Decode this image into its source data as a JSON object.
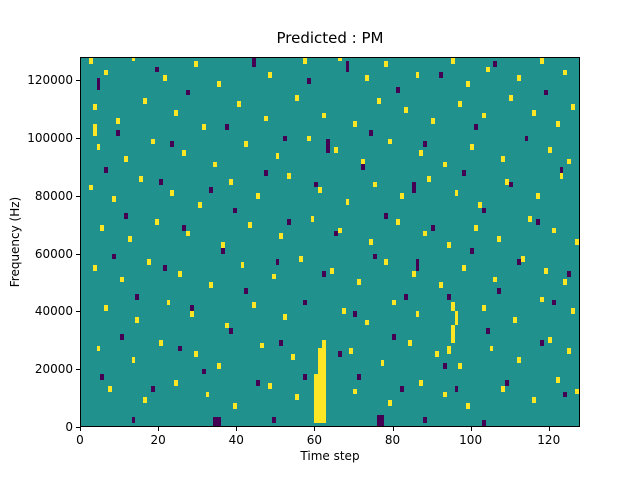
{
  "figure": {
    "title": "Predicted : PM",
    "xlabel": "Time step",
    "ylabel": "Frequency (Hz)"
  },
  "chart_data": {
    "type": "heatmap",
    "title": "Predicted : PM",
    "xlabel": "Time step",
    "ylabel": "Frequency (Hz)",
    "xlim": [
      0,
      128
    ],
    "ylim": [
      0,
      128000
    ],
    "x_ticks": [
      0,
      20,
      40,
      60,
      80,
      100,
      120
    ],
    "y_ticks": [
      0,
      20000,
      40000,
      60000,
      80000,
      100000,
      120000
    ],
    "grid": false,
    "legend": "none",
    "colors": {
      "background": "#20918c",
      "high": "#fde725",
      "low": "#440154"
    },
    "value_legend": {
      "1": "high (yellow)",
      "0": "low (dark purple)"
    },
    "cell_format": "[time_step, freq_bin_kHz, value, width_steps(optional,default 1), height_bins(optional,default 2)]",
    "cells": [
      [
        2,
        126,
        1
      ],
      [
        6,
        122,
        1
      ],
      [
        13,
        127,
        1
      ],
      [
        21,
        120,
        1
      ],
      [
        29,
        125,
        1
      ],
      [
        35,
        118,
        1
      ],
      [
        48,
        121,
        1
      ],
      [
        57,
        126,
        1
      ],
      [
        66,
        127,
        1
      ],
      [
        73,
        120,
        1
      ],
      [
        78,
        125,
        1
      ],
      [
        86,
        121,
        1
      ],
      [
        95,
        126,
        1
      ],
      [
        99,
        118,
        1
      ],
      [
        104,
        123,
        1
      ],
      [
        112,
        120,
        1
      ],
      [
        118,
        126,
        1
      ],
      [
        124,
        122,
        1
      ],
      [
        3,
        110,
        1
      ],
      [
        9,
        105,
        1
      ],
      [
        16,
        112,
        1
      ],
      [
        24,
        108,
        1
      ],
      [
        31,
        103,
        1
      ],
      [
        40,
        111,
        1
      ],
      [
        47,
        106,
        1
      ],
      [
        55,
        113,
        1
      ],
      [
        62,
        107,
        1
      ],
      [
        70,
        104,
        1
      ],
      [
        76,
        112,
        1
      ],
      [
        83,
        109,
        1
      ],
      [
        90,
        105,
        1
      ],
      [
        97,
        111,
        1
      ],
      [
        103,
        107,
        1
      ],
      [
        110,
        113,
        1
      ],
      [
        116,
        108,
        1
      ],
      [
        122,
        104,
        1
      ],
      [
        126,
        110,
        1
      ],
      [
        4,
        96,
        1
      ],
      [
        11,
        92,
        1
      ],
      [
        18,
        98,
        1
      ],
      [
        26,
        94,
        1
      ],
      [
        34,
        90,
        1
      ],
      [
        42,
        97,
        1
      ],
      [
        50,
        93,
        1
      ],
      [
        58,
        99,
        1
      ],
      [
        65,
        95,
        1
      ],
      [
        72,
        91,
        1
      ],
      [
        79,
        98,
        1
      ],
      [
        87,
        94,
        1
      ],
      [
        93,
        90,
        1
      ],
      [
        100,
        96,
        1
      ],
      [
        108,
        92,
        1
      ],
      [
        114,
        99,
        1
      ],
      [
        120,
        95,
        1
      ],
      [
        125,
        91,
        1
      ],
      [
        2,
        82,
        1
      ],
      [
        8,
        78,
        1
      ],
      [
        15,
        85,
        1
      ],
      [
        23,
        80,
        1
      ],
      [
        30,
        76,
        1
      ],
      [
        38,
        84,
        1
      ],
      [
        45,
        79,
        1
      ],
      [
        53,
        86,
        1
      ],
      [
        61,
        81,
        1
      ],
      [
        68,
        77,
        1
      ],
      [
        75,
        83,
        1
      ],
      [
        82,
        79,
        1
      ],
      [
        89,
        85,
        1
      ],
      [
        96,
        80,
        1
      ],
      [
        102,
        76,
        1
      ],
      [
        109,
        84,
        1
      ],
      [
        117,
        79,
        1
      ],
      [
        123,
        86,
        1
      ],
      [
        5,
        68,
        1
      ],
      [
        12,
        64,
        1
      ],
      [
        19,
        70,
        1
      ],
      [
        27,
        66,
        1
      ],
      [
        36,
        62,
        1
      ],
      [
        43,
        69,
        1
      ],
      [
        51,
        65,
        1
      ],
      [
        59,
        71,
        1
      ],
      [
        66,
        67,
        1
      ],
      [
        74,
        63,
        1
      ],
      [
        81,
        70,
        1
      ],
      [
        88,
        66,
        1
      ],
      [
        94,
        62,
        1
      ],
      [
        101,
        68,
        1
      ],
      [
        107,
        64,
        1
      ],
      [
        115,
        71,
        1
      ],
      [
        121,
        67,
        1
      ],
      [
        127,
        63,
        1
      ],
      [
        3,
        54,
        1
      ],
      [
        10,
        50,
        1
      ],
      [
        17,
        56,
        1
      ],
      [
        25,
        52,
        1
      ],
      [
        33,
        48,
        1
      ],
      [
        41,
        55,
        1
      ],
      [
        49,
        51,
        1
      ],
      [
        56,
        57,
        1
      ],
      [
        64,
        53,
        1
      ],
      [
        71,
        49,
        1
      ],
      [
        78,
        56,
        1
      ],
      [
        85,
        52,
        1
      ],
      [
        92,
        48,
        1
      ],
      [
        98,
        54,
        1
      ],
      [
        106,
        50,
        1
      ],
      [
        113,
        57,
        1
      ],
      [
        119,
        53,
        1
      ],
      [
        124,
        49,
        1
      ],
      [
        6,
        40,
        1
      ],
      [
        14,
        36,
        1
      ],
      [
        22,
        42,
        1
      ],
      [
        28,
        38,
        1
      ],
      [
        37,
        34,
        1
      ],
      [
        44,
        41,
        1
      ],
      [
        52,
        37,
        1
      ],
      [
        67,
        39,
        1
      ],
      [
        73,
        35,
        1
      ],
      [
        80,
        42,
        1
      ],
      [
        86,
        38,
        1
      ],
      [
        103,
        40,
        1
      ],
      [
        111,
        36,
        1
      ],
      [
        118,
        43,
        1
      ],
      [
        126,
        39,
        1
      ],
      [
        4,
        26,
        1
      ],
      [
        13,
        22,
        1
      ],
      [
        20,
        28,
        1
      ],
      [
        29,
        24,
        1
      ],
      [
        35,
        20,
        1
      ],
      [
        46,
        27,
        1
      ],
      [
        54,
        23,
        1
      ],
      [
        69,
        25,
        1
      ],
      [
        77,
        21,
        1
      ],
      [
        84,
        28,
        1
      ],
      [
        91,
        24,
        1
      ],
      [
        97,
        20,
        1
      ],
      [
        105,
        26,
        1
      ],
      [
        112,
        22,
        1
      ],
      [
        120,
        29,
        1
      ],
      [
        125,
        25,
        1
      ],
      [
        7,
        12,
        1
      ],
      [
        16,
        8,
        1
      ],
      [
        24,
        14,
        1
      ],
      [
        32,
        10,
        1
      ],
      [
        39,
        6,
        1
      ],
      [
        48,
        13,
        1
      ],
      [
        55,
        9,
        1
      ],
      [
        70,
        11,
        1
      ],
      [
        79,
        7,
        1
      ],
      [
        87,
        14,
        1
      ],
      [
        93,
        10,
        1
      ],
      [
        99,
        6,
        1
      ],
      [
        108,
        12,
        1
      ],
      [
        116,
        8,
        1
      ],
      [
        122,
        15,
        1
      ],
      [
        127,
        11,
        1
      ],
      [
        60,
        1,
        1,
        3,
        5
      ],
      [
        60,
        6,
        1,
        3,
        6
      ],
      [
        60,
        12,
        1,
        3,
        6
      ],
      [
        61,
        18,
        1,
        2,
        5
      ],
      [
        61,
        23,
        1,
        2,
        4
      ],
      [
        62,
        27,
        1,
        1,
        3
      ],
      [
        95,
        29,
        1,
        1,
        6
      ],
      [
        96,
        35,
        1,
        1,
        5
      ],
      [
        95,
        40,
        1,
        1,
        3
      ],
      [
        94,
        25,
        1,
        1,
        3
      ],
      [
        3,
        101,
        1,
        1,
        4
      ],
      [
        4,
        117,
        0,
        1,
        4
      ],
      [
        19,
        123,
        0
      ],
      [
        27,
        115,
        0
      ],
      [
        44,
        125,
        0,
        1,
        3
      ],
      [
        58,
        119,
        0
      ],
      [
        68,
        123,
        0,
        1,
        4
      ],
      [
        81,
        116,
        0
      ],
      [
        92,
        121,
        0
      ],
      [
        106,
        125,
        0
      ],
      [
        119,
        115,
        0
      ],
      [
        9,
        101,
        0
      ],
      [
        23,
        97,
        0
      ],
      [
        37,
        103,
        0
      ],
      [
        52,
        99,
        0
      ],
      [
        63,
        95,
        0,
        1,
        5
      ],
      [
        74,
        101,
        0
      ],
      [
        88,
        97,
        0
      ],
      [
        101,
        103,
        0
      ],
      [
        114,
        99,
        0
      ],
      [
        6,
        88,
        0
      ],
      [
        20,
        84,
        0
      ],
      [
        33,
        81,
        0
      ],
      [
        47,
        87,
        0
      ],
      [
        60,
        83,
        0
      ],
      [
        72,
        89,
        0
      ],
      [
        85,
        81,
        0,
        1,
        4
      ],
      [
        98,
        87,
        0
      ],
      [
        110,
        83,
        0
      ],
      [
        123,
        88,
        0
      ],
      [
        11,
        72,
        0
      ],
      [
        26,
        68,
        0
      ],
      [
        39,
        74,
        0
      ],
      [
        53,
        70,
        0
      ],
      [
        65,
        66,
        0
      ],
      [
        78,
        72,
        0
      ],
      [
        90,
        68,
        0
      ],
      [
        103,
        74,
        0
      ],
      [
        117,
        70,
        0
      ],
      [
        8,
        58,
        0
      ],
      [
        21,
        54,
        0
      ],
      [
        36,
        60,
        0
      ],
      [
        50,
        56,
        0
      ],
      [
        62,
        52,
        0
      ],
      [
        75,
        58,
        0
      ],
      [
        86,
        54,
        0,
        1,
        4
      ],
      [
        100,
        60,
        0
      ],
      [
        112,
        56,
        0
      ],
      [
        125,
        52,
        0
      ],
      [
        14,
        44,
        0
      ],
      [
        28,
        40,
        0
      ],
      [
        42,
        46,
        0
      ],
      [
        57,
        42,
        0
      ],
      [
        70,
        38,
        0
      ],
      [
        83,
        44,
        0
      ],
      [
        94,
        44,
        0
      ],
      [
        107,
        46,
        0
      ],
      [
        121,
        42,
        0
      ],
      [
        10,
        30,
        0
      ],
      [
        25,
        26,
        0
      ],
      [
        38,
        32,
        0
      ],
      [
        51,
        28,
        0
      ],
      [
        66,
        24,
        0
      ],
      [
        80,
        30,
        0
      ],
      [
        93,
        20,
        0
      ],
      [
        104,
        32,
        0
      ],
      [
        118,
        28,
        0
      ],
      [
        5,
        16,
        0
      ],
      [
        18,
        12,
        0
      ],
      [
        31,
        18,
        0
      ],
      [
        45,
        14,
        0
      ],
      [
        57,
        16,
        0
      ],
      [
        71,
        16,
        0
      ],
      [
        82,
        12,
        0
      ],
      [
        96,
        12,
        0
      ],
      [
        109,
        14,
        0
      ],
      [
        124,
        10,
        0
      ],
      [
        34,
        0,
        0,
        2,
        3
      ],
      [
        76,
        0,
        0,
        2,
        4
      ],
      [
        88,
        1,
        0
      ],
      [
        13,
        1,
        0
      ],
      [
        49,
        1,
        0
      ],
      [
        103,
        0,
        0
      ]
    ]
  }
}
